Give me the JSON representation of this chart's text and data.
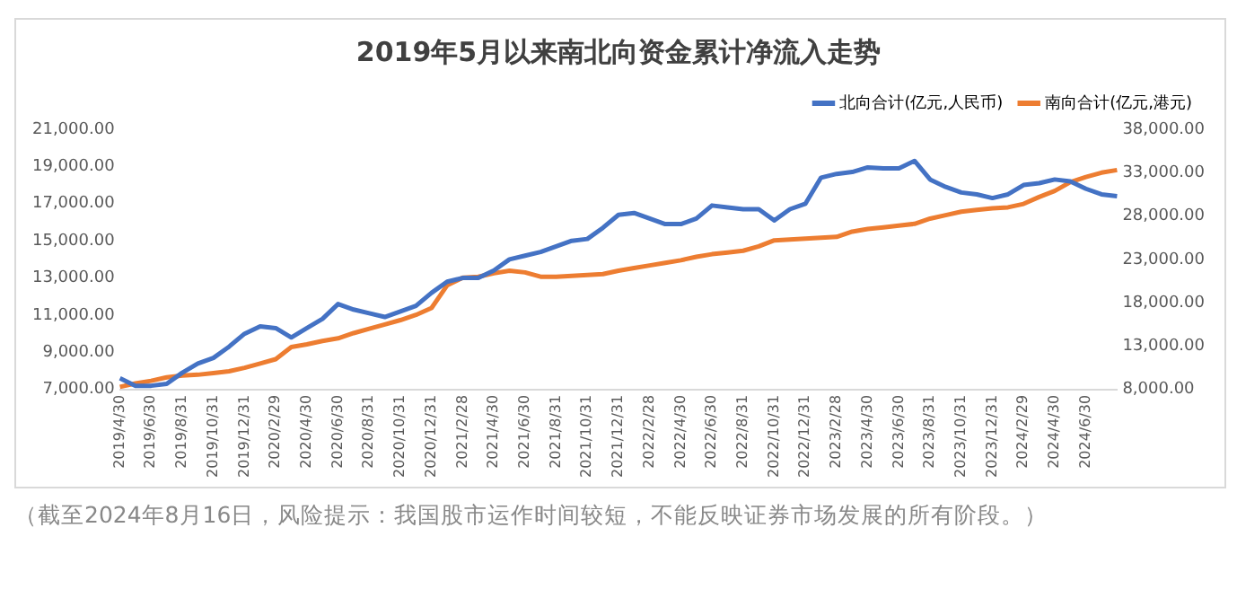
{
  "chart_data": {
    "type": "line",
    "title": "2019年5月以来南北向资金累计净流入走势",
    "categories": [
      "2019/4/30",
      null,
      "2019/6/30",
      null,
      "2019/8/31",
      null,
      "2019/10/31",
      null,
      "2019/12/31",
      null,
      "2020/2/29",
      null,
      "2020/4/30",
      null,
      "2020/6/30",
      null,
      "2020/8/31",
      null,
      "2020/10/31",
      null,
      "2020/12/31",
      null,
      "2021/2/28",
      null,
      "2021/4/30",
      null,
      "2021/6/30",
      null,
      "2021/8/31",
      null,
      "2021/10/31",
      null,
      "2021/12/31",
      null,
      "2022/2/28",
      null,
      "2022/4/30",
      null,
      "2022/6/30",
      null,
      "2022/8/31",
      null,
      "2022/10/31",
      null,
      "2022/12/31",
      null,
      "2023/2/28",
      null,
      "2023/4/30",
      null,
      "2023/6/30",
      null,
      "2023/8/31",
      null,
      "2023/10/31",
      null,
      "2023/12/31",
      null,
      "2024/2/29",
      null,
      "2024/4/30",
      null,
      "2024/6/30",
      null,
      null
    ],
    "series": [
      {
        "name": "北向合计(亿元,人民币)",
        "color": "#4472c4",
        "values": [
          7600,
          7200,
          7200,
          7300,
          7900,
          8400,
          8700,
          9300,
          10000,
          10400,
          10300,
          9800,
          10300,
          10800,
          11600,
          11300,
          11100,
          10900,
          11200,
          11500,
          12200,
          12800,
          13000,
          13000,
          13400,
          14000,
          14200,
          14400,
          14700,
          15000,
          15100,
          15700,
          16400,
          16500,
          16200,
          15900,
          15900,
          16200,
          16900,
          16800,
          16700,
          16700,
          16100,
          16700,
          17000,
          18400,
          18600,
          18700,
          18950,
          18900,
          18900,
          19300,
          18300,
          17900,
          17600,
          17500,
          17300,
          17500,
          18000,
          18100,
          18300,
          18200,
          17800,
          17500,
          17400
        ]
      },
      {
        "name": "南向合计(亿元,港元)",
        "color": "#ed7d31",
        "axis": "y2",
        "values": [
          8300,
          8700,
          9000,
          9400,
          9600,
          9700,
          9900,
          10100,
          10500,
          11000,
          11500,
          12900,
          13200,
          13600,
          13900,
          14500,
          15000,
          15500,
          16000,
          16600,
          17400,
          20000,
          20900,
          21000,
          21400,
          21700,
          21500,
          21000,
          21000,
          21100,
          21200,
          21300,
          21700,
          22000,
          22300,
          22600,
          22900,
          23300,
          23600,
          23800,
          24000,
          24500,
          25200,
          25300,
          25400,
          25500,
          25600,
          26200,
          26500,
          26700,
          26900,
          27100,
          27700,
          28100,
          28500,
          28700,
          28900,
          29000,
          29400,
          30200,
          30900,
          31900,
          32500,
          33000,
          33300
        ]
      }
    ],
    "ylim": [
      7000,
      21000
    ],
    "yticks": [
      {
        "value": 7000,
        "label": "7,000.00"
      },
      {
        "value": 9000,
        "label": "9,000.00"
      },
      {
        "value": 11000,
        "label": "11,000.00"
      },
      {
        "value": 13000,
        "label": "13,000.00"
      },
      {
        "value": 15000,
        "label": "15,000.00"
      },
      {
        "value": 17000,
        "label": "17,000.00"
      },
      {
        "value": 19000,
        "label": "19,000.00"
      },
      {
        "value": 21000,
        "label": "21,000.00"
      }
    ],
    "y2lim": [
      8000,
      38000
    ],
    "y2ticks": [
      {
        "value": 8000,
        "label": "8,000.00"
      },
      {
        "value": 13000,
        "label": "13,000.00"
      },
      {
        "value": 18000,
        "label": "18,000.00"
      },
      {
        "value": 23000,
        "label": "23,000.00"
      },
      {
        "value": 28000,
        "label": "28,000.00"
      },
      {
        "value": 33000,
        "label": "33,000.00"
      },
      {
        "value": 38000,
        "label": "38,000.00"
      }
    ],
    "grid": false,
    "legend": "top",
    "marker": "none",
    "line_style": "solid",
    "annotations": [
      "（截至2024年8月16日，风险提示：我国股市运作时间较短，不能反映证券市场发展的所有阶段。）"
    ]
  }
}
